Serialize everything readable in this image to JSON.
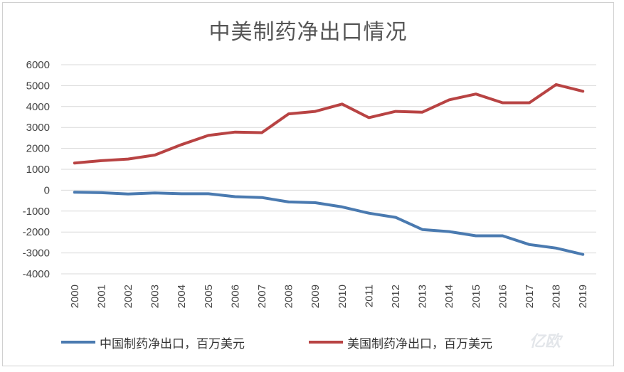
{
  "chart_data": {
    "type": "line",
    "title": "中美制药净出口情况",
    "categories": [
      "2000",
      "2001",
      "2002",
      "2003",
      "2004",
      "2005",
      "2006",
      "2007",
      "2008",
      "2009",
      "2010",
      "2011",
      "2012",
      "2013",
      "2014",
      "2015",
      "2016",
      "2017",
      "2018",
      "2019"
    ],
    "ylim": [
      -4000,
      6000
    ],
    "yticks": [
      6000,
      5000,
      4000,
      3000,
      2000,
      1000,
      0,
      -1000,
      -2000,
      -3000,
      -4000
    ],
    "ytick_labels": [
      "6000",
      "5000",
      "4000",
      "3000",
      "2000",
      "1000",
      "0",
      "-1000",
      "-2000",
      "-3000",
      "-4000"
    ],
    "grid": true,
    "legend_position": "bottom",
    "series": [
      {
        "name": "中国制药净出口，百万美元",
        "color": "#4a7ab0",
        "values": [
          -100,
          -120,
          -180,
          -130,
          -170,
          -170,
          -310,
          -350,
          -560,
          -600,
          -800,
          -1100,
          -1300,
          -1880,
          -1980,
          -2180,
          -2180,
          -2600,
          -2770,
          -3070
        ]
      },
      {
        "name": "美国制药净出口，百万美元",
        "color": "#b84343",
        "values": [
          1300,
          1410,
          1490,
          1680,
          2180,
          2620,
          2780,
          2750,
          3650,
          3770,
          4120,
          3470,
          3770,
          3730,
          4320,
          4600,
          4180,
          4180,
          5050,
          4730
        ]
      }
    ]
  },
  "watermark": "亿欧"
}
